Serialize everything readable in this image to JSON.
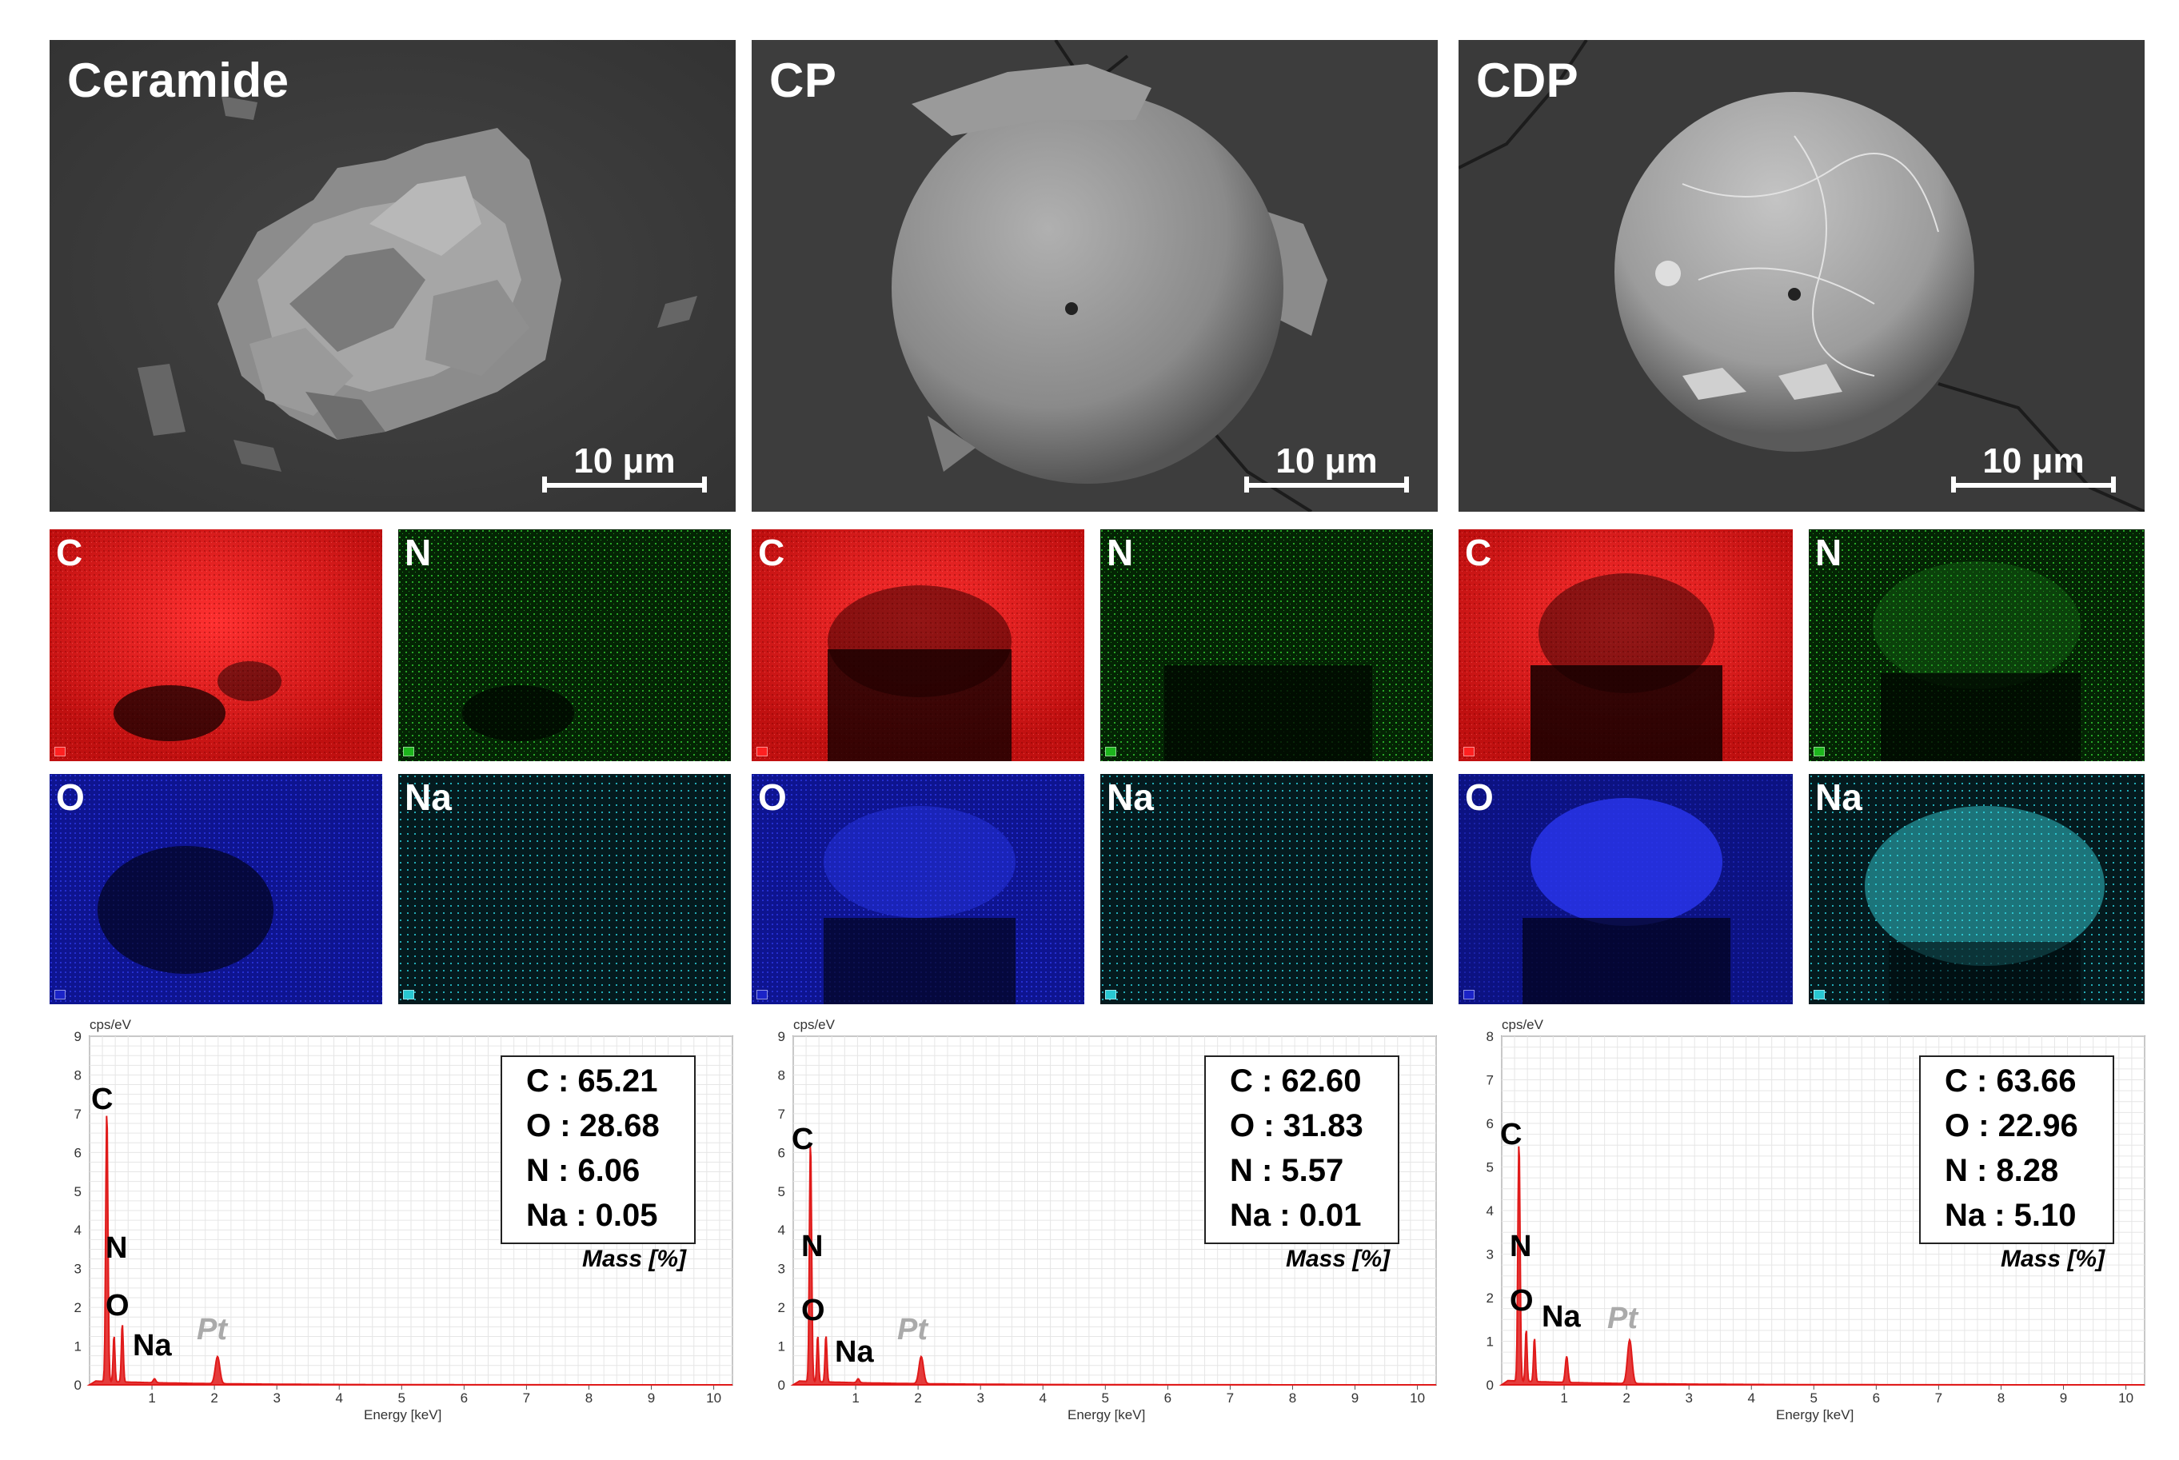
{
  "sem_panels": [
    {
      "title": "Ceramide",
      "scale": "10 μm"
    },
    {
      "title": "CP",
      "scale": "10 μm"
    },
    {
      "title": "CDP",
      "scale": "10 μm"
    }
  ],
  "map_labels": {
    "c": "C",
    "n": "N",
    "o": "O",
    "na": "Na"
  },
  "colors": {
    "C": "#e01010",
    "N": "#1db51d",
    "O": "#1a23c8",
    "Na": "#28c8d2",
    "spectrum": "#e01a1a"
  },
  "spectra": [
    {
      "unit": "cps/eV",
      "xlabel": "Energy [keV]",
      "yticks": [
        "0",
        "1",
        "2",
        "3",
        "4",
        "5",
        "6",
        "7",
        "8",
        "9"
      ],
      "xticks": [
        "1",
        "2",
        "3",
        "4",
        "5",
        "6",
        "7",
        "8",
        "9",
        "10"
      ],
      "peaks": {
        "C": "C",
        "N": "N",
        "O": "O",
        "Na": "Na",
        "Pt": "Pt"
      },
      "legend": [
        "C : 65.21",
        "O : 28.68",
        "N : 6.06",
        "Na : 0.05"
      ],
      "mass": "Mass [%]"
    },
    {
      "unit": "cps/eV",
      "xlabel": "Energy [keV]",
      "yticks": [
        "0",
        "1",
        "2",
        "3",
        "4",
        "5",
        "6",
        "7",
        "8",
        "9"
      ],
      "xticks": [
        "1",
        "2",
        "3",
        "4",
        "5",
        "6",
        "7",
        "8",
        "9",
        "10"
      ],
      "peaks": {
        "C": "C",
        "N": "N",
        "O": "O",
        "Na": "Na",
        "Pt": "Pt"
      },
      "legend": [
        "C : 62.60",
        "O : 31.83",
        "N : 5.57",
        "Na : 0.01"
      ],
      "mass": "Mass [%]"
    },
    {
      "unit": "cps/eV",
      "xlabel": "Energy [keV]",
      "yticks": [
        "0",
        "1",
        "2",
        "3",
        "4",
        "5",
        "6",
        "7",
        "8"
      ],
      "xticks": [
        "1",
        "2",
        "3",
        "4",
        "5",
        "6",
        "7",
        "8",
        "9",
        "10"
      ],
      "peaks": {
        "C": "C",
        "N": "N",
        "O": "O",
        "Na": "Na",
        "Pt": "Pt"
      },
      "legend": [
        "C : 63.66",
        "O : 22.96",
        "N : 8.28",
        "Na : 5.10"
      ],
      "mass": "Mass [%]"
    }
  ]
}
